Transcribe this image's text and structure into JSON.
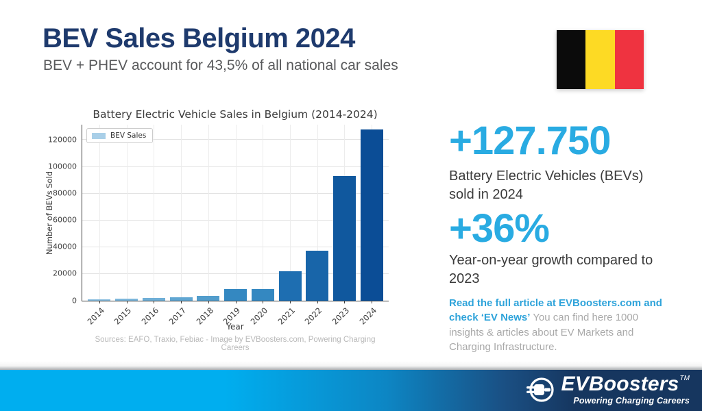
{
  "header": {
    "title": "BEV Sales Belgium 2024",
    "subtitle": "BEV + PHEV account for 43,5% of all national car sales"
  },
  "flag": {
    "country": "Belgium",
    "colors": [
      "#0b0b0b",
      "#FDDA24",
      "#EF3340"
    ]
  },
  "chart_data": {
    "type": "bar",
    "title": "Battery Electric Vehicle Sales in Belgium (2014-2024)",
    "xlabel": "Year",
    "ylabel": "Number of BEVs Sold",
    "legend": [
      "BEV Sales"
    ],
    "legend_position": "upper left",
    "legend_swatch_color": "#a9cfe8",
    "grid": true,
    "categories": [
      "2014",
      "2015",
      "2016",
      "2017",
      "2018",
      "2019",
      "2020",
      "2021",
      "2022",
      "2023",
      "2024"
    ],
    "values": [
      1200,
      1600,
      2100,
      2700,
      3700,
      8900,
      8600,
      22000,
      37600,
      93100,
      127750
    ],
    "bar_colors": [
      "#85bcdf",
      "#7db7dc",
      "#6fafd7",
      "#60a6d2",
      "#529dcc",
      "#3488c1",
      "#3488c1",
      "#1e6eb1",
      "#1865a9",
      "#10589e",
      "#0b4d96"
    ],
    "yticks": [
      0,
      20000,
      40000,
      60000,
      80000,
      100000,
      120000
    ],
    "ylim": [
      0,
      131500
    ]
  },
  "chart_source": "Sources: EAFO, Traxio, Febiac - Image by EVBoosters.com, Powering Charging Careers",
  "stats": [
    {
      "value": "+127.750",
      "caption": "Battery Electric Vehicles (BEVs) sold in 2024"
    },
    {
      "value": "+36%",
      "caption": "Year-on-year growth compared to 2023"
    }
  ],
  "cta": {
    "link_text": "Read the full article at EVBoosters.com and check",
    "link_highlight": "‘EV News’",
    "rest_text": "You can find here 1000 insights & articles about EV Markets and Charging Infrastructure."
  },
  "footer": {
    "brand": "EVBoosters",
    "trademark": "TM",
    "tagline": "Powering Charging Careers"
  },
  "colors": {
    "title_navy": "#1e3a6d",
    "stat_blue": "#29abe2",
    "footer_cyan": "#00aeef",
    "footer_navy": "#16365f"
  }
}
